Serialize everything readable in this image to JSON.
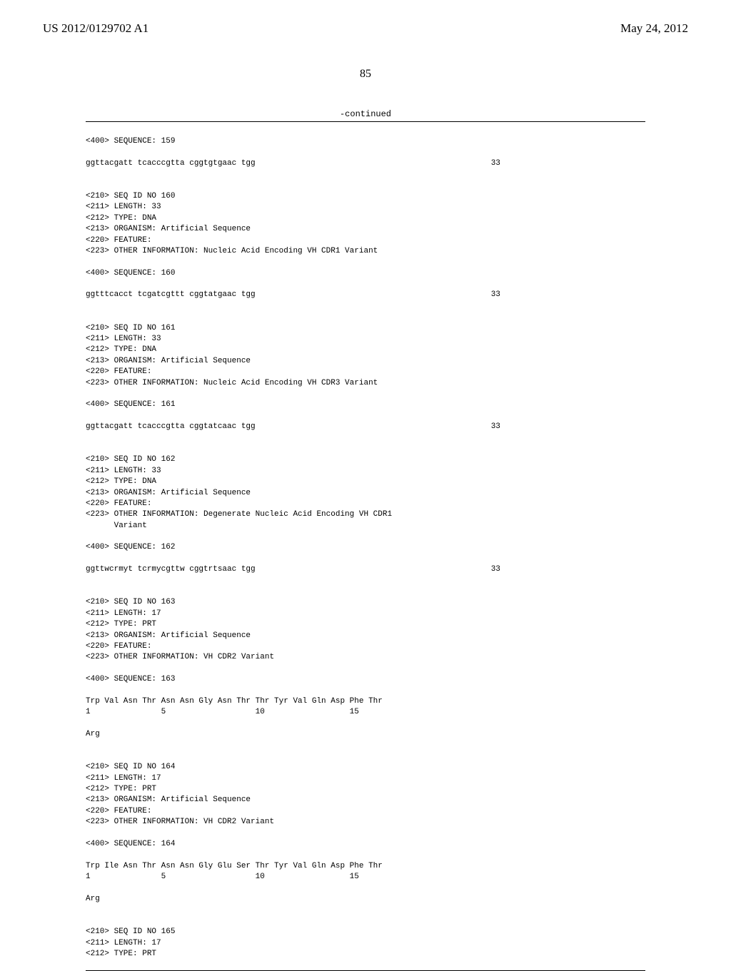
{
  "header": {
    "patentNumber": "US 2012/0129702 A1",
    "date": "May 24, 2012",
    "pageNumber": "85",
    "continued": "-continued"
  },
  "entries": [
    {
      "lines": [
        "<400> SEQUENCE: 159",
        "",
        "ggttacgatt tcacccgtta cggtgtgaac tgg"
      ],
      "rightValue": "33",
      "rightLineIndex": 2
    },
    {
      "lines": [
        "<210> SEQ ID NO 160",
        "<211> LENGTH: 33",
        "<212> TYPE: DNA",
        "<213> ORGANISM: Artificial Sequence",
        "<220> FEATURE:",
        "<223> OTHER INFORMATION: Nucleic Acid Encoding VH CDR1 Variant",
        "",
        "<400> SEQUENCE: 160",
        "",
        "ggtttcacct tcgatcgttt cggtatgaac tgg"
      ],
      "rightValue": "33",
      "rightLineIndex": 9
    },
    {
      "lines": [
        "<210> SEQ ID NO 161",
        "<211> LENGTH: 33",
        "<212> TYPE: DNA",
        "<213> ORGANISM: Artificial Sequence",
        "<220> FEATURE:",
        "<223> OTHER INFORMATION: Nucleic Acid Encoding VH CDR3 Variant",
        "",
        "<400> SEQUENCE: 161",
        "",
        "ggttacgatt tcacccgtta cggtatcaac tgg"
      ],
      "rightValue": "33",
      "rightLineIndex": 9
    },
    {
      "lines": [
        "<210> SEQ ID NO 162",
        "<211> LENGTH: 33",
        "<212> TYPE: DNA",
        "<213> ORGANISM: Artificial Sequence",
        "<220> FEATURE:",
        "<223> OTHER INFORMATION: Degenerate Nucleic Acid Encoding VH CDR1",
        "      Variant",
        "",
        "<400> SEQUENCE: 162",
        "",
        "ggttwcrmyt tcrmycgttw cggtrtsaac tgg"
      ],
      "rightValue": "33",
      "rightLineIndex": 10
    },
    {
      "lines": [
        "<210> SEQ ID NO 163",
        "<211> LENGTH: 17",
        "<212> TYPE: PRT",
        "<213> ORGANISM: Artificial Sequence",
        "<220> FEATURE:",
        "<223> OTHER INFORMATION: VH CDR2 Variant",
        "",
        "<400> SEQUENCE: 163",
        "",
        "Trp Val Asn Thr Asn Asn Gly Asn Thr Thr Tyr Val Gln Asp Phe Thr",
        "1               5                   10                  15",
        "",
        "Arg"
      ],
      "rightValue": null,
      "rightLineIndex": null
    },
    {
      "lines": [
        "<210> SEQ ID NO 164",
        "<211> LENGTH: 17",
        "<212> TYPE: PRT",
        "<213> ORGANISM: Artificial Sequence",
        "<220> FEATURE:",
        "<223> OTHER INFORMATION: VH CDR2 Variant",
        "",
        "<400> SEQUENCE: 164",
        "",
        "Trp Ile Asn Thr Asn Asn Gly Glu Ser Thr Tyr Val Gln Asp Phe Thr",
        "1               5                   10                  15",
        "",
        "Arg"
      ],
      "rightValue": null,
      "rightLineIndex": null
    },
    {
      "lines": [
        "<210> SEQ ID NO 165",
        "<211> LENGTH: 17",
        "<212> TYPE: PRT"
      ],
      "rightValue": null,
      "rightLineIndex": null
    }
  ],
  "styling": {
    "pageWidth": 1024,
    "pageHeight": 1320,
    "backgroundColor": "#ffffff",
    "textColor": "#000000",
    "headerFontSize": 17,
    "pageNumberFontSize": 16,
    "contentFontSize": 11,
    "contentFontFamily": "Courier New",
    "headerFontFamily": "Times New Roman",
    "contentPadding": "20px 120px 0 120px",
    "sequenceRightPosition": 690
  }
}
